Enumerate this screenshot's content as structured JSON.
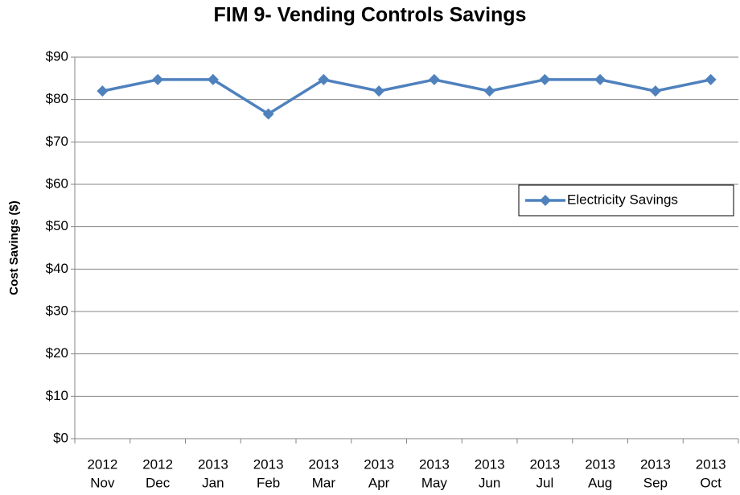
{
  "chart_data": {
    "type": "line",
    "title": "FIM 9- Vending Controls Savings",
    "y_label": "Cost Savings ($)",
    "categories": [
      [
        "2012",
        "Nov"
      ],
      [
        "2012",
        "Dec"
      ],
      [
        "2013",
        "Jan"
      ],
      [
        "2013",
        "Feb"
      ],
      [
        "2013",
        "Mar"
      ],
      [
        "2013",
        "Apr"
      ],
      [
        "2013",
        "May"
      ],
      [
        "2013",
        "Jun"
      ],
      [
        "2013",
        "Jul"
      ],
      [
        "2013",
        "Aug"
      ],
      [
        "2013",
        "Sep"
      ],
      [
        "2013",
        "Oct"
      ]
    ],
    "series": [
      {
        "name": "Electricity Savings",
        "color": "#4f81bd",
        "values": [
          82,
          84.7,
          84.7,
          76.6,
          84.7,
          82,
          84.7,
          82,
          84.7,
          84.7,
          82,
          84.7
        ]
      }
    ],
    "ylim": [
      0,
      90
    ],
    "yticks": [
      {
        "value": 0,
        "label": "$0"
      },
      {
        "value": 10,
        "label": "$10"
      },
      {
        "value": 20,
        "label": "$20"
      },
      {
        "value": 30,
        "label": "$30"
      },
      {
        "value": 40,
        "label": "$40"
      },
      {
        "value": 50,
        "label": "$50"
      },
      {
        "value": 60,
        "label": "$60"
      },
      {
        "value": 70,
        "label": "$70"
      },
      {
        "value": 80,
        "label": "$80"
      },
      {
        "value": 90,
        "label": "$90"
      }
    ],
    "grid": true,
    "legend": "right"
  }
}
